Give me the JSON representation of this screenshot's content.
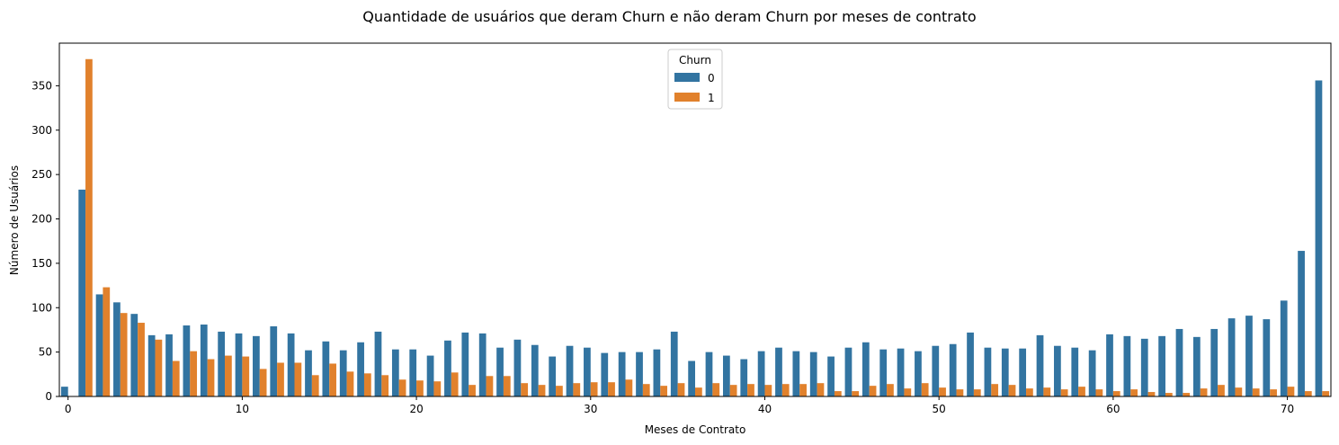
{
  "chart_data": {
    "type": "bar",
    "title": "Quantidade de usuários que deram Churn e não deram Churn por meses de contrato",
    "xlabel": "Meses de Contrato",
    "ylabel": "Número de Usuários",
    "ylim": [
      0,
      398
    ],
    "yticks": [
      0,
      50,
      100,
      150,
      200,
      250,
      300,
      350
    ],
    "xticks": [
      0,
      10,
      20,
      30,
      40,
      50,
      60,
      70
    ],
    "grid": false,
    "legend": {
      "title": "Churn",
      "placement": "top-center"
    },
    "categories": [
      0,
      1,
      2,
      3,
      4,
      5,
      6,
      7,
      8,
      9,
      10,
      11,
      12,
      13,
      14,
      15,
      16,
      17,
      18,
      19,
      20,
      21,
      22,
      23,
      24,
      25,
      26,
      27,
      28,
      29,
      30,
      31,
      32,
      33,
      34,
      35,
      36,
      37,
      38,
      39,
      40,
      41,
      42,
      43,
      44,
      45,
      46,
      47,
      48,
      49,
      50,
      51,
      52,
      53,
      54,
      55,
      56,
      57,
      58,
      59,
      60,
      61,
      62,
      63,
      64,
      65,
      66,
      67,
      68,
      69,
      70,
      71,
      72
    ],
    "series": [
      {
        "name": "0",
        "color": "#3274a1",
        "values": [
          11,
          233,
          115,
          106,
          93,
          69,
          70,
          80,
          81,
          73,
          71,
          68,
          79,
          71,
          52,
          62,
          52,
          61,
          73,
          53,
          53,
          46,
          63,
          72,
          71,
          55,
          64,
          58,
          45,
          57,
          55,
          49,
          50,
          50,
          53,
          73,
          40,
          50,
          46,
          42,
          51,
          55,
          51,
          50,
          45,
          55,
          61,
          53,
          54,
          51,
          57,
          59,
          72,
          55,
          54,
          54,
          69,
          57,
          55,
          52,
          70,
          68,
          65,
          68,
          76,
          67,
          76,
          88,
          91,
          87,
          108,
          164,
          356
        ]
      },
      {
        "name": "1",
        "color": "#e1812c",
        "values": [
          0,
          380,
          123,
          94,
          83,
          64,
          40,
          51,
          42,
          46,
          45,
          31,
          38,
          38,
          24,
          37,
          28,
          26,
          24,
          19,
          18,
          17,
          27,
          13,
          23,
          23,
          15,
          13,
          12,
          15,
          16,
          16,
          19,
          14,
          12,
          15,
          10,
          15,
          13,
          14,
          13,
          14,
          14,
          15,
          6,
          6,
          12,
          14,
          9,
          15,
          10,
          8,
          8,
          14,
          13,
          9,
          10,
          8,
          11,
          8,
          6,
          8,
          5,
          4,
          4,
          9,
          13,
          10,
          9,
          8,
          11,
          6,
          6
        ]
      }
    ]
  }
}
